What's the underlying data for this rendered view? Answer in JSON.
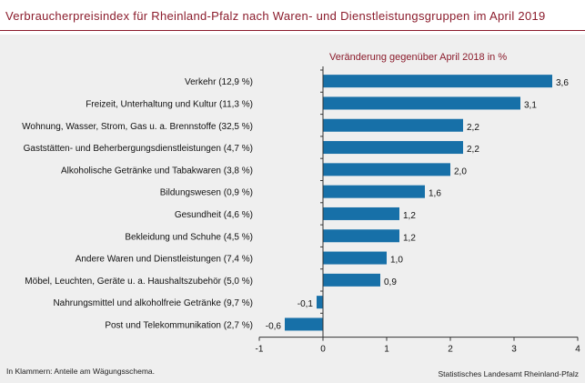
{
  "title": "Verbraucherpreisindex für Rheinland-Pfalz nach Waren- und Dienstleistungsgruppen im April 2019",
  "subtitle": "Veränderung gegenüber April 2018 in %",
  "footnote": "In Klammern: Anteile am Wägungsschema.",
  "source": "Statistisches Landesamt Rheinland-Pfalz",
  "colors": {
    "bar": "#1770a8",
    "accent": "#8b1c2c",
    "panel": "#efefef"
  },
  "chart_data": {
    "type": "bar",
    "orientation": "horizontal",
    "categories": [
      "Verkehr (12,9 %)",
      "Freizeit, Unterhaltung und Kultur (11,3 %)",
      "Wohnung, Wasser, Strom, Gas u. a. Brennstoffe (32,5 %)",
      "Gaststätten- und Beherbergungsdienstleistungen (4,7 %)",
      "Alkoholische Getränke und Tabakwaren (3,8 %)",
      "Bildungswesen (0,9 %)",
      "Gesundheit (4,6 %)",
      "Bekleidung und Schuhe (4,5 %)",
      "Andere Waren und Dienstleistungen (7,4 %)",
      "Möbel, Leuchten, Geräte u. a. Haushaltszubehör (5,0 %)",
      "Nahrungsmittel und alkoholfreie Getränke (9,7 %)",
      "Post und Telekommunikation (2,7 %)"
    ],
    "values": [
      3.6,
      3.1,
      2.2,
      2.2,
      2.0,
      1.6,
      1.2,
      1.2,
      1.0,
      0.9,
      -0.1,
      -0.6
    ],
    "value_labels": [
      "3,6",
      "3,1",
      "2,2",
      "2,2",
      "2,0",
      "1,6",
      "1,2",
      "1,2",
      "1,0",
      "0,9",
      "-0,1",
      "-0,6"
    ],
    "xlim": [
      -1,
      4
    ],
    "xticks": [
      -1,
      0,
      1,
      2,
      3,
      4
    ],
    "xtick_labels": [
      "-1",
      "0",
      "1",
      "2",
      "3",
      "4"
    ],
    "title": "Veränderung gegenüber April 2018 in %",
    "legend": "none",
    "grid": false
  }
}
